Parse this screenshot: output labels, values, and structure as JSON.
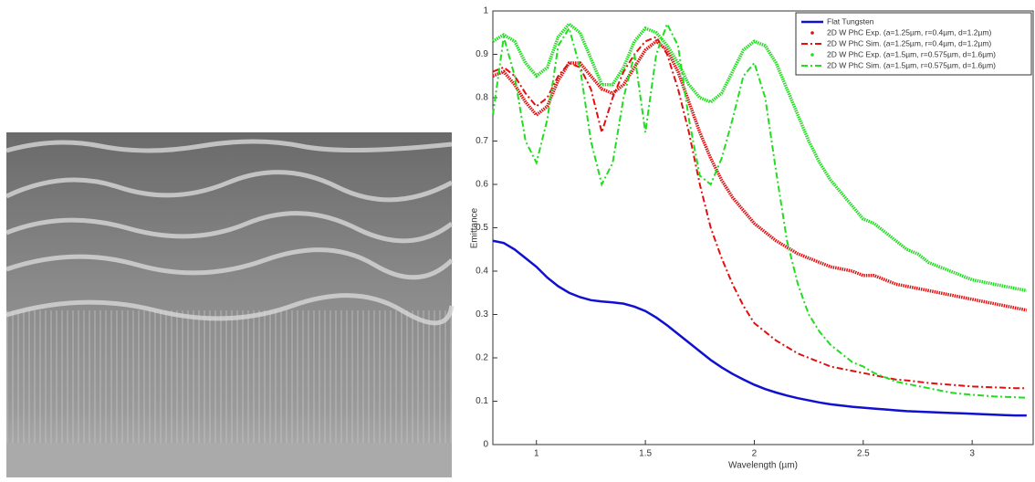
{
  "chart_data": {
    "type": "line",
    "x_label": "Wavelength (µm)",
    "y_label": "Emittance",
    "x": [
      0.8,
      0.85,
      0.9,
      0.95,
      1.0,
      1.05,
      1.1,
      1.15,
      1.2,
      1.25,
      1.3,
      1.35,
      1.4,
      1.45,
      1.5,
      1.55,
      1.6,
      1.65,
      1.7,
      1.75,
      1.8,
      1.85,
      1.9,
      1.95,
      2.0,
      2.05,
      2.1,
      2.15,
      2.2,
      2.25,
      2.3,
      2.35,
      2.4,
      2.45,
      2.5,
      2.55,
      2.6,
      2.65,
      2.7,
      2.75,
      2.8,
      2.85,
      2.9,
      2.95,
      3.0,
      3.05,
      3.1,
      3.15,
      3.2,
      3.25
    ],
    "xlim": [
      0.8,
      3.28
    ],
    "xticks": [
      1,
      1.5,
      2,
      2.5,
      3
    ],
    "ylim": [
      0,
      1
    ],
    "yticks": [
      0,
      0.1,
      0.2,
      0.3,
      0.4,
      0.5,
      0.6,
      0.7,
      0.8,
      0.9,
      1
    ],
    "legend": "upper right",
    "series": [
      {
        "name": "Flat Tungsten",
        "color": "#1010d0",
        "style": "solid",
        "values": [
          0.47,
          0.465,
          0.45,
          0.43,
          0.41,
          0.385,
          0.365,
          0.35,
          0.34,
          0.333,
          0.33,
          0.328,
          0.325,
          0.318,
          0.308,
          0.293,
          0.275,
          0.255,
          0.235,
          0.215,
          0.195,
          0.178,
          0.163,
          0.15,
          0.138,
          0.128,
          0.12,
          0.113,
          0.107,
          0.102,
          0.097,
          0.093,
          0.09,
          0.087,
          0.085,
          0.083,
          0.081,
          0.079,
          0.077,
          0.076,
          0.075,
          0.074,
          0.073,
          0.072,
          0.071,
          0.07,
          0.069,
          0.068,
          0.067,
          0.067
        ]
      },
      {
        "name": "2D W PhC Exp. (a=1.25µm, r=0.4µm, d=1.2µm)",
        "color": "#e01010",
        "style": "dotted",
        "values": [
          0.85,
          0.86,
          0.83,
          0.79,
          0.76,
          0.78,
          0.84,
          0.88,
          0.88,
          0.85,
          0.82,
          0.81,
          0.83,
          0.87,
          0.91,
          0.93,
          0.91,
          0.86,
          0.79,
          0.72,
          0.66,
          0.61,
          0.57,
          0.54,
          0.51,
          0.49,
          0.47,
          0.455,
          0.44,
          0.43,
          0.42,
          0.41,
          0.405,
          0.4,
          0.39,
          0.39,
          0.38,
          0.37,
          0.365,
          0.36,
          0.355,
          0.35,
          0.345,
          0.34,
          0.335,
          0.33,
          0.325,
          0.32,
          0.315,
          0.31
        ]
      },
      {
        "name": "2D W PhC Sim. (a=1.25µm, r=0.4µm, d=1.2µm)",
        "color": "#e01010",
        "style": "dashdot",
        "values": [
          0.86,
          0.87,
          0.85,
          0.81,
          0.78,
          0.8,
          0.85,
          0.88,
          0.87,
          0.82,
          0.72,
          0.8,
          0.86,
          0.9,
          0.93,
          0.94,
          0.9,
          0.82,
          0.72,
          0.6,
          0.5,
          0.43,
          0.37,
          0.32,
          0.28,
          0.26,
          0.24,
          0.225,
          0.21,
          0.2,
          0.19,
          0.18,
          0.175,
          0.17,
          0.165,
          0.16,
          0.155,
          0.15,
          0.148,
          0.145,
          0.142,
          0.14,
          0.138,
          0.136,
          0.134,
          0.133,
          0.132,
          0.131,
          0.13,
          0.13
        ]
      },
      {
        "name": "2D W PhC Exp. (a=1.5µm, r=0.575µm, d=1.6µm)",
        "color": "#20dd20",
        "style": "dotted",
        "values": [
          0.93,
          0.945,
          0.93,
          0.88,
          0.85,
          0.87,
          0.94,
          0.97,
          0.95,
          0.89,
          0.83,
          0.83,
          0.87,
          0.93,
          0.96,
          0.95,
          0.92,
          0.88,
          0.83,
          0.8,
          0.79,
          0.81,
          0.86,
          0.91,
          0.93,
          0.92,
          0.88,
          0.82,
          0.76,
          0.7,
          0.65,
          0.61,
          0.58,
          0.55,
          0.52,
          0.51,
          0.49,
          0.47,
          0.45,
          0.44,
          0.42,
          0.41,
          0.4,
          0.39,
          0.38,
          0.375,
          0.37,
          0.365,
          0.36,
          0.355
        ]
      },
      {
        "name": "2D W PhC Sim. (a=1.5µm, r=0.575µm, d=1.6µm)",
        "color": "#20dd20",
        "style": "dashdot",
        "values": [
          0.76,
          0.94,
          0.85,
          0.7,
          0.65,
          0.75,
          0.92,
          0.96,
          0.87,
          0.7,
          0.6,
          0.65,
          0.8,
          0.9,
          0.72,
          0.9,
          0.97,
          0.92,
          0.75,
          0.62,
          0.6,
          0.66,
          0.75,
          0.85,
          0.88,
          0.8,
          0.63,
          0.47,
          0.37,
          0.3,
          0.26,
          0.23,
          0.21,
          0.19,
          0.18,
          0.165,
          0.155,
          0.145,
          0.14,
          0.135,
          0.13,
          0.125,
          0.12,
          0.117,
          0.115,
          0.113,
          0.111,
          0.11,
          0.109,
          0.108
        ]
      }
    ]
  }
}
